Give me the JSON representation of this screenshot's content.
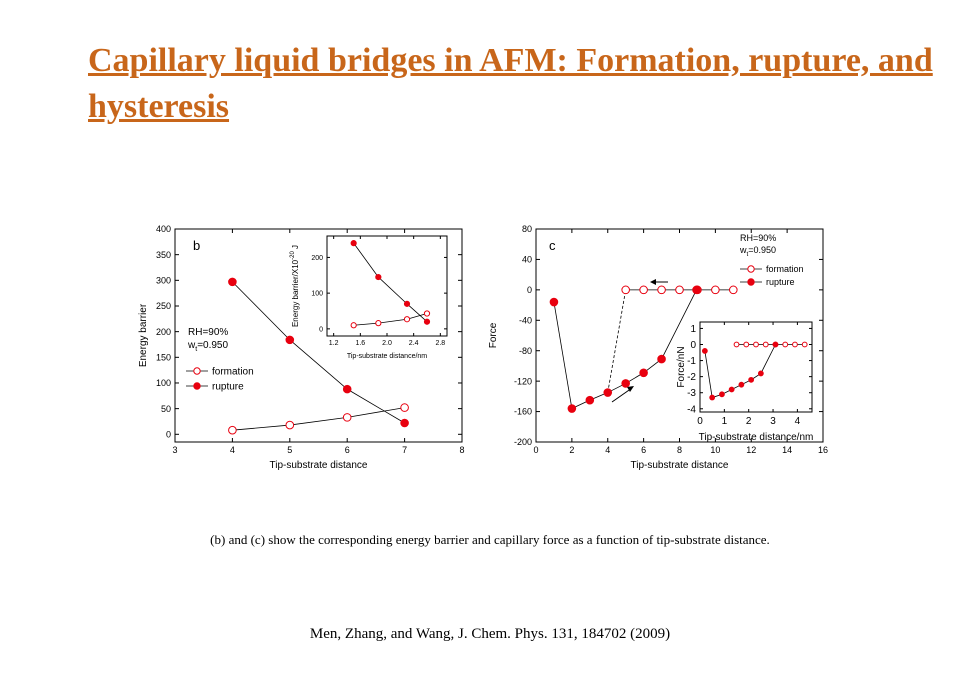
{
  "slide": {
    "title": "Capillary liquid bridges in AFM: Formation, rupture, and hysteresis",
    "caption": "(b) and (c) show the corresponding energy barrier and capillary force as a function of tip-substrate distance.",
    "reference": "Men, Zhang, and Wang, J. Chem. Phys. 131, 184702 (2009)",
    "title_color": "#C8661A",
    "marker_color": "#E8000F"
  },
  "chart_data": [
    {
      "type": "line",
      "panel_label": "b",
      "xlabel": "Tip-substrate distance",
      "ylabel": "Energy barrier",
      "xlim": [
        3,
        8
      ],
      "ylim": [
        -15,
        400
      ],
      "xticks": [
        3,
        4,
        5,
        6,
        7,
        8
      ],
      "yticks": [
        0,
        50,
        100,
        150,
        200,
        250,
        300,
        350,
        400
      ],
      "annotations": [
        "RH=90%",
        "w",
        "t",
        "=0.950"
      ],
      "series": [
        {
          "name": "formation",
          "marker": "open-circle",
          "x": [
            4,
            5,
            6,
            7
          ],
          "y": [
            8,
            18,
            33,
            52
          ]
        },
        {
          "name": "rupture",
          "marker": "filled-circle",
          "x": [
            4,
            5,
            6,
            7
          ],
          "y": [
            297,
            184,
            88,
            22
          ]
        }
      ],
      "inset": {
        "type": "line",
        "xlabel": "Tip-substrate distance/nm",
        "ylabel": "Energy barrier/X10",
        "ylabel_exponent": "-20",
        "ylabel_unit": "J",
        "xlim": [
          1.1,
          2.9
        ],
        "ylim": [
          -20,
          260
        ],
        "xticks": [
          1.2,
          1.6,
          2.0,
          2.4,
          2.8
        ],
        "xtick_labels": [
          "1.2",
          "1.6",
          "2.0",
          "2.4",
          "2.8"
        ],
        "yticks": [
          0,
          100,
          200
        ],
        "series": [
          {
            "name": "formation",
            "marker": "open-circle",
            "x": [
              1.5,
              1.87,
              2.3,
              2.6
            ],
            "y": [
              10,
              16,
              27,
              43
            ]
          },
          {
            "name": "rupture",
            "marker": "filled-circle",
            "x": [
              1.5,
              1.87,
              2.3,
              2.6
            ],
            "y": [
              240,
              145,
              70,
              20
            ]
          }
        ]
      }
    },
    {
      "type": "line",
      "panel_label": "c",
      "xlabel": "Tip-substrate distance",
      "ylabel": "Force",
      "xlim": [
        0,
        16
      ],
      "ylim": [
        -200,
        80
      ],
      "xticks": [
        0,
        2,
        4,
        6,
        8,
        10,
        12,
        14,
        16
      ],
      "yticks": [
        -200,
        -160,
        -120,
        -80,
        -40,
        0,
        40,
        80
      ],
      "annotations": [
        "RH=90%",
        "w",
        "t",
        "=0.950"
      ],
      "series": [
        {
          "name": "formation",
          "marker": "open-circle",
          "x": [
            5,
            6,
            7,
            8,
            9,
            10,
            11
          ],
          "y": [
            0,
            0,
            0,
            0,
            0,
            0,
            0
          ]
        },
        {
          "name": "rupture",
          "marker": "filled-circle",
          "x": [
            1,
            2,
            3,
            4,
            5,
            6,
            7,
            8.95
          ],
          "y": [
            -16,
            -156,
            -145,
            -135,
            -123,
            -109,
            -91,
            0
          ]
        }
      ],
      "dashed_line": {
        "x": [
          4,
          5
        ],
        "y": [
          -135,
          0
        ]
      },
      "inset": {
        "type": "line",
        "xlabel": "Tip-substrate distance/nm",
        "ylabel": "Force/nN",
        "xlim": [
          0,
          4.6
        ],
        "ylim": [
          -4.2,
          1.4
        ],
        "xticks": [
          0,
          1,
          2,
          3,
          4
        ],
        "yticks": [
          -4,
          -3,
          -2,
          -1,
          0,
          1
        ],
        "series": [
          {
            "name": "formation",
            "marker": "open-circle",
            "x": [
              1.5,
              1.9,
              2.3,
              2.7,
              3.1,
              3.5,
              3.9,
              4.3
            ],
            "y": [
              0,
              0,
              0,
              0,
              0,
              0,
              0,
              0
            ]
          },
          {
            "name": "rupture",
            "marker": "filled-circle",
            "x": [
              0.2,
              0.5,
              0.9,
              1.3,
              1.7,
              2.1,
              2.5,
              3.1
            ],
            "y": [
              -0.4,
              -3.3,
              -3.1,
              -2.8,
              -2.5,
              -2.2,
              -1.8,
              0
            ]
          }
        ]
      }
    }
  ]
}
